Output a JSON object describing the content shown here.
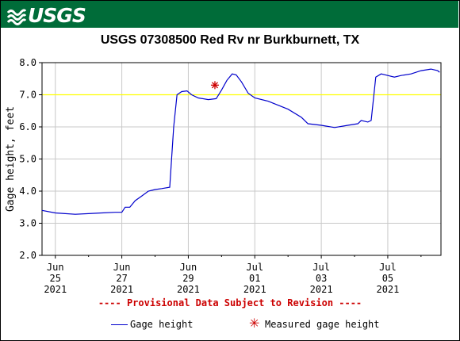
{
  "header": {
    "logo_text": "USGS",
    "bg_color": "#006c39"
  },
  "chart_data": {
    "type": "line",
    "title": "USGS 07308500 Red Rv nr Burkburnett, TX",
    "ylabel": "Gage height, feet",
    "xlabel": "",
    "ylim": [
      2.0,
      8.0
    ],
    "yticks": [
      "2.0",
      "3.0",
      "4.0",
      "5.0",
      "6.0",
      "7.0",
      "8.0"
    ],
    "xlim_days": [
      -0.2,
      5.8
    ],
    "xticks": [
      {
        "month": "Jun",
        "day": "25",
        "year": "2021",
        "offset": 0
      },
      {
        "month": "Jun",
        "day": "27",
        "year": "2021",
        "offset": 1
      },
      {
        "month": "Jun",
        "day": "29",
        "year": "2021",
        "offset": 2
      },
      {
        "month": "Jul",
        "day": "01",
        "year": "2021",
        "offset": 3
      },
      {
        "month": "Jul",
        "day": "03",
        "year": "2021",
        "offset": 4
      },
      {
        "month": "Jul",
        "day": "05",
        "year": "2021",
        "offset": 5
      }
    ],
    "reference_line": {
      "value": 7.0,
      "color": "#ffff00"
    },
    "grid": true,
    "series": [
      {
        "name": "Gage height",
        "color": "#0000cc",
        "points": [
          [
            -0.2,
            3.4
          ],
          [
            0.0,
            3.32
          ],
          [
            0.15,
            3.3
          ],
          [
            0.3,
            3.28
          ],
          [
            0.5,
            3.3
          ],
          [
            0.7,
            3.32
          ],
          [
            0.9,
            3.34
          ],
          [
            1.0,
            3.34
          ],
          [
            1.05,
            3.5
          ],
          [
            1.12,
            3.5
          ],
          [
            1.2,
            3.7
          ],
          [
            1.3,
            3.85
          ],
          [
            1.4,
            4.0
          ],
          [
            1.5,
            4.05
          ],
          [
            1.6,
            4.08
          ],
          [
            1.72,
            4.12
          ],
          [
            1.78,
            6.0
          ],
          [
            1.83,
            7.0
          ],
          [
            1.9,
            7.1
          ],
          [
            1.98,
            7.12
          ],
          [
            2.05,
            7.0
          ],
          [
            2.15,
            6.9
          ],
          [
            2.3,
            6.85
          ],
          [
            2.42,
            6.88
          ],
          [
            2.5,
            7.15
          ],
          [
            2.58,
            7.45
          ],
          [
            2.66,
            7.65
          ],
          [
            2.72,
            7.62
          ],
          [
            2.8,
            7.4
          ],
          [
            2.9,
            7.05
          ],
          [
            3.0,
            6.9
          ],
          [
            3.2,
            6.8
          ],
          [
            3.5,
            6.55
          ],
          [
            3.7,
            6.3
          ],
          [
            3.8,
            6.1
          ],
          [
            4.0,
            6.05
          ],
          [
            4.2,
            5.98
          ],
          [
            4.4,
            6.05
          ],
          [
            4.55,
            6.1
          ],
          [
            4.6,
            6.2
          ],
          [
            4.7,
            6.15
          ],
          [
            4.75,
            6.2
          ],
          [
            4.82,
            7.55
          ],
          [
            4.9,
            7.65
          ],
          [
            5.0,
            7.6
          ],
          [
            5.1,
            7.55
          ],
          [
            5.2,
            7.6
          ],
          [
            5.35,
            7.65
          ],
          [
            5.5,
            7.75
          ],
          [
            5.65,
            7.8
          ],
          [
            5.75,
            7.75
          ],
          [
            5.78,
            7.7
          ]
        ]
      }
    ],
    "measured_points": [
      {
        "name": "Measured gage height",
        "x": 2.4,
        "y": 7.3,
        "color": "#cc0000"
      }
    ],
    "provisional_note": "---- Provisional Data Subject to Revision ----",
    "legend": [
      {
        "label": "Gage height",
        "style": "line",
        "color": "#0000cc"
      },
      {
        "label": "Measured gage height",
        "style": "star",
        "color": "#cc0000"
      }
    ]
  }
}
